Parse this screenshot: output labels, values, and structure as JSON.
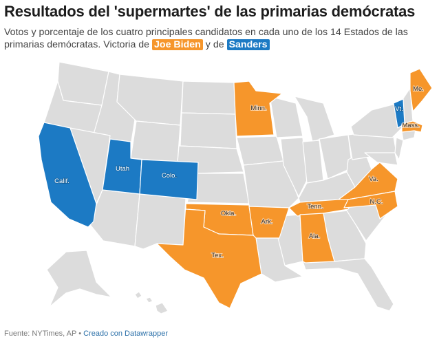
{
  "header": {
    "title": "Resultados del 'supermartes' de las primarias demócratas",
    "subtitle_part1": "Votos y porcentaje de los cuatro principales candidatos en cada uno de los 14 Estados de las primarias demócratas. Victoria de",
    "biden_label": "Joe Biden",
    "subtitle_connector": "y de",
    "sanders_label": "Sanders"
  },
  "colors": {
    "biden": "#f6962b",
    "sanders": "#1c7ac4",
    "no_vote": "#dcdcdc",
    "border": "#ffffff"
  },
  "states": {
    "biden": [
      {
        "id": "minn",
        "label": "Minn."
      },
      {
        "id": "me",
        "label": "Me."
      },
      {
        "id": "mass",
        "label": "Mass."
      },
      {
        "id": "okla",
        "label": "Okla."
      },
      {
        "id": "ark",
        "label": "Ark."
      },
      {
        "id": "tenn",
        "label": "Tenn."
      },
      {
        "id": "va",
        "label": "Va."
      },
      {
        "id": "nc",
        "label": "N.C."
      },
      {
        "id": "tex",
        "label": "Tex."
      },
      {
        "id": "ala",
        "label": "Ala."
      }
    ],
    "sanders": [
      {
        "id": "calif",
        "label": "Calif."
      },
      {
        "id": "utah",
        "label": "Utah"
      },
      {
        "id": "colo",
        "label": "Colo."
      },
      {
        "id": "vt",
        "label": "Vt."
      }
    ]
  },
  "footer": {
    "source": "Fuente: NYTimes, AP",
    "separator": " • ",
    "credit": "Creado con Datawrapper"
  }
}
